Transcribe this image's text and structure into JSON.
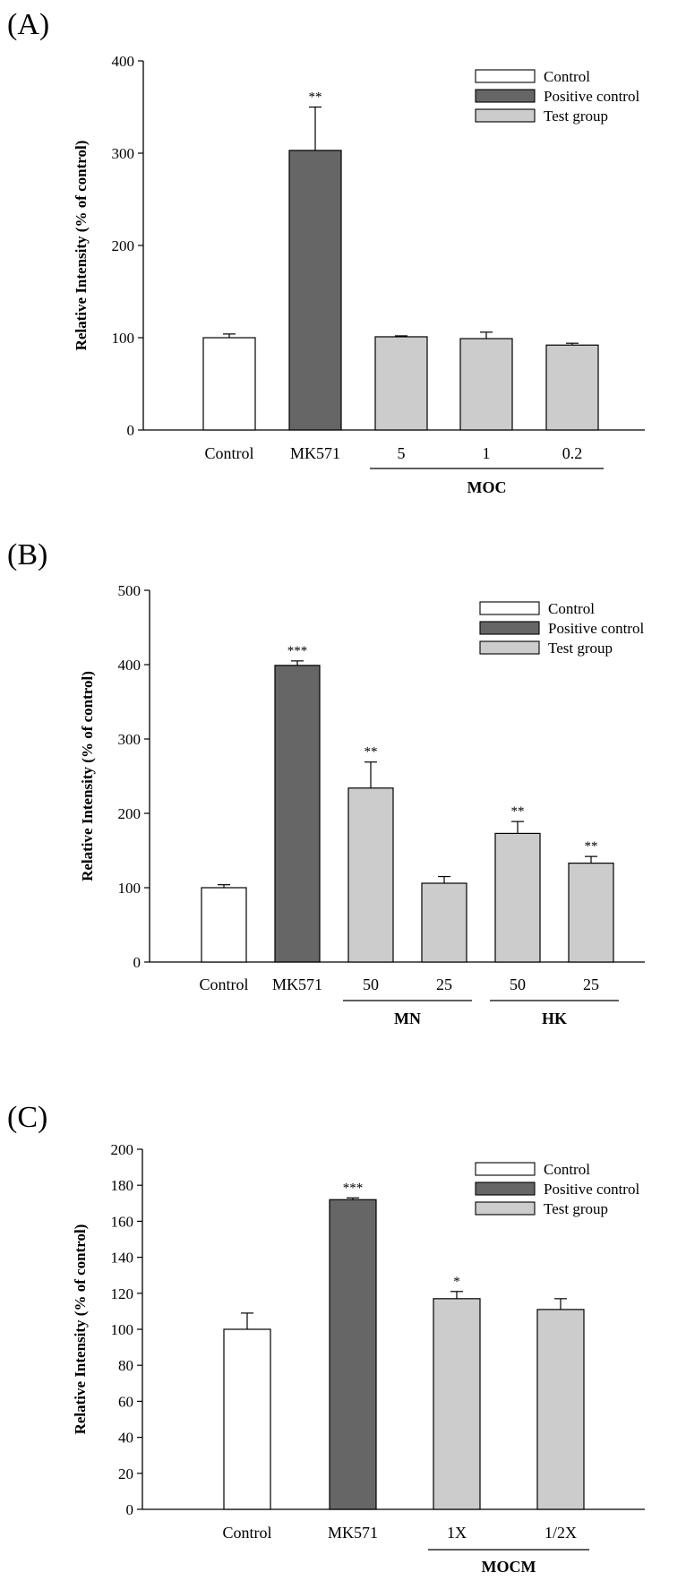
{
  "colors": {
    "control": "#ffffff",
    "positive": "#666666",
    "test": "#cccccc",
    "stroke": "#000000"
  },
  "legend": [
    "Control",
    "Positive control",
    "Test group"
  ],
  "chart_data": [
    {
      "type": "bar",
      "panel_label": "(A)",
      "ylabel": "Relative Intensity (% of control)",
      "ylim": [
        0,
        400
      ],
      "yticks": [
        0,
        100,
        200,
        300,
        400
      ],
      "categories": [
        "Control",
        "MK571",
        "5",
        "1",
        "0.2"
      ],
      "values": [
        100,
        303,
        101,
        99,
        92
      ],
      "errors": [
        4,
        47,
        1,
        7,
        2
      ],
      "kinds": [
        "control",
        "positive",
        "test",
        "test",
        "test"
      ],
      "significance": [
        "",
        "**",
        "",
        "",
        ""
      ],
      "groups": [
        {
          "label": "MOC",
          "start": 2,
          "end": 4
        }
      ],
      "legend": [
        "Control",
        "Positive control",
        "Test group"
      ]
    },
    {
      "type": "bar",
      "panel_label": "(B)",
      "ylabel": "Relative Intensity (% of control)",
      "ylim": [
        0,
        500
      ],
      "yticks": [
        0,
        100,
        200,
        300,
        400,
        500
      ],
      "categories": [
        "Control",
        "MK571",
        "50",
        "25",
        "50",
        "25"
      ],
      "values": [
        100,
        399,
        234,
        106,
        173,
        133
      ],
      "errors": [
        4,
        6,
        35,
        9,
        16,
        9
      ],
      "kinds": [
        "control",
        "positive",
        "test",
        "test",
        "test",
        "test"
      ],
      "significance": [
        "",
        "***",
        "**",
        "",
        "**",
        "**"
      ],
      "groups": [
        {
          "label": "MN",
          "start": 2,
          "end": 3
        },
        {
          "label": "HK",
          "start": 4,
          "end": 5
        }
      ],
      "legend": [
        "Control",
        "Positive control",
        "Test group"
      ]
    },
    {
      "type": "bar",
      "panel_label": "(C)",
      "ylabel": "Relative Intensity (% of control)",
      "ylim": [
        0,
        200
      ],
      "yticks": [
        0,
        20,
        40,
        60,
        80,
        100,
        120,
        140,
        160,
        180,
        200
      ],
      "categories": [
        "Control",
        "MK571",
        "1X",
        "1/2X"
      ],
      "values": [
        100,
        172,
        117,
        111
      ],
      "errors": [
        9,
        1,
        4,
        6
      ],
      "kinds": [
        "control",
        "positive",
        "test",
        "test"
      ],
      "significance": [
        "",
        "***",
        "*",
        ""
      ],
      "groups": [
        {
          "label": "MOCM",
          "start": 2,
          "end": 3
        }
      ],
      "legend": [
        "Control",
        "Positive control",
        "Test group"
      ]
    }
  ]
}
